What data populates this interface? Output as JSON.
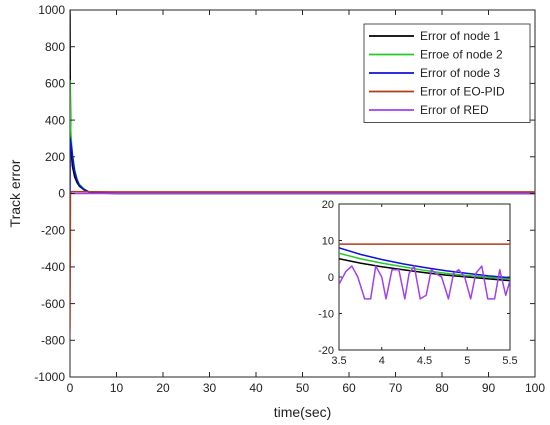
{
  "chart_data": [
    {
      "type": "line",
      "xlabel": "time(sec)",
      "ylabel": "Track error",
      "xlim": [
        0,
        100
      ],
      "ylim": [
        -1000,
        1000
      ],
      "xticks": [
        "0",
        "10",
        "20",
        "30",
        "40",
        "50",
        "60",
        "70",
        "80",
        "90",
        "100"
      ],
      "yticks": [
        "1000",
        "800",
        "600",
        "400",
        "200",
        "0",
        "-200",
        "-400",
        "-600",
        "-800",
        "-1000"
      ],
      "grid": false,
      "legend_position": "top-right",
      "series": [
        {
          "name": "Error of node 1",
          "color": "#000000",
          "x": [
            0,
            0.05,
            0.2,
            0.5,
            1,
            1.5,
            2,
            3,
            4,
            5,
            10,
            50,
            100
          ],
          "y": [
            1000,
            600,
            250,
            150,
            90,
            60,
            40,
            20,
            8,
            3,
            0,
            0,
            0
          ]
        },
        {
          "name": "Erroe of node 2",
          "color": "#22cc22",
          "x": [
            0,
            0.05,
            0.2,
            0.5,
            1,
            1.5,
            2,
            3,
            4,
            5,
            10,
            50,
            100
          ],
          "y": [
            620,
            450,
            320,
            220,
            130,
            80,
            50,
            25,
            10,
            4,
            0,
            0,
            0
          ]
        },
        {
          "name": "Error of node 3",
          "color": "#1010dd",
          "x": [
            0,
            0.05,
            0.3,
            0.6,
            1,
            1.5,
            2,
            3,
            4,
            5,
            10,
            50,
            100
          ],
          "y": [
            0,
            300,
            260,
            190,
            120,
            75,
            45,
            22,
            9,
            4,
            0,
            0,
            0
          ]
        },
        {
          "name": "Error of  EO-PID",
          "color": "#b33a1a",
          "x": [
            0,
            0.1,
            0.3,
            1,
            9,
            100
          ],
          "y": [
            -750,
            0,
            10,
            10,
            9,
            9
          ]
        },
        {
          "name": "Error of RED",
          "color": "#a040f0",
          "x": [
            0,
            10,
            20,
            30,
            40,
            50,
            60,
            70,
            80,
            90,
            100
          ],
          "y": [
            0,
            0,
            0,
            0,
            0,
            0,
            0,
            0,
            0,
            0,
            0
          ]
        }
      ]
    },
    {
      "type": "line",
      "xlabel": "",
      "ylabel": "",
      "xlim": [
        3.5,
        5.5
      ],
      "ylim": [
        -20,
        20
      ],
      "xticks": [
        "3.5",
        "4",
        "4.5",
        "5",
        "5.5"
      ],
      "yticks": [
        "20",
        "10",
        "0",
        "-10",
        "-20"
      ],
      "grid": false,
      "legend_position": "none",
      "series": [
        {
          "name": "",
          "color": "#000000",
          "x": [
            3.5,
            3.75,
            4,
            4.25,
            4.5,
            4.75,
            5,
            5.25,
            5.5
          ],
          "y": [
            5,
            3.8,
            2.8,
            2,
            1.2,
            0.5,
            0,
            -0.5,
            -1
          ]
        },
        {
          "name": "",
          "color": "#22cc22",
          "x": [
            3.5,
            3.75,
            4,
            4.25,
            4.5,
            4.75,
            5,
            5.25,
            5.5
          ],
          "y": [
            6.5,
            5,
            3.8,
            2.8,
            1.8,
            1,
            0.4,
            -0.1,
            -0.5
          ]
        },
        {
          "name": "",
          "color": "#1010dd",
          "x": [
            3.5,
            3.75,
            4,
            4.25,
            4.5,
            4.75,
            5,
            5.25,
            5.5
          ],
          "y": [
            8,
            6.2,
            4.8,
            3.6,
            2.6,
            1.7,
            1,
            0.3,
            -0.2
          ]
        },
        {
          "name": "",
          "color": "#b33a1a",
          "x": [
            3.5,
            5.5
          ],
          "y": [
            9,
            9
          ]
        },
        {
          "name": "",
          "color": "#a040f0",
          "x": [
            3.5,
            3.58,
            3.65,
            3.72,
            3.8,
            3.87,
            3.93,
            4.0,
            4.05,
            4.12,
            4.2,
            4.27,
            4.32,
            4.38,
            4.45,
            4.52,
            4.58,
            4.63,
            4.7,
            4.78,
            4.84,
            4.9,
            4.97,
            5.04,
            5.1,
            5.17,
            5.24,
            5.32,
            5.38,
            5.45,
            5.5
          ],
          "y": [
            -2,
            1.5,
            3,
            0,
            -6,
            -6,
            3,
            0,
            -6,
            2,
            2,
            -6,
            1,
            3,
            -6,
            -5,
            2,
            1,
            0,
            -6,
            1,
            2,
            0,
            -6,
            1,
            3,
            -6,
            -6,
            2,
            -5,
            -1
          ]
        }
      ]
    }
  ]
}
